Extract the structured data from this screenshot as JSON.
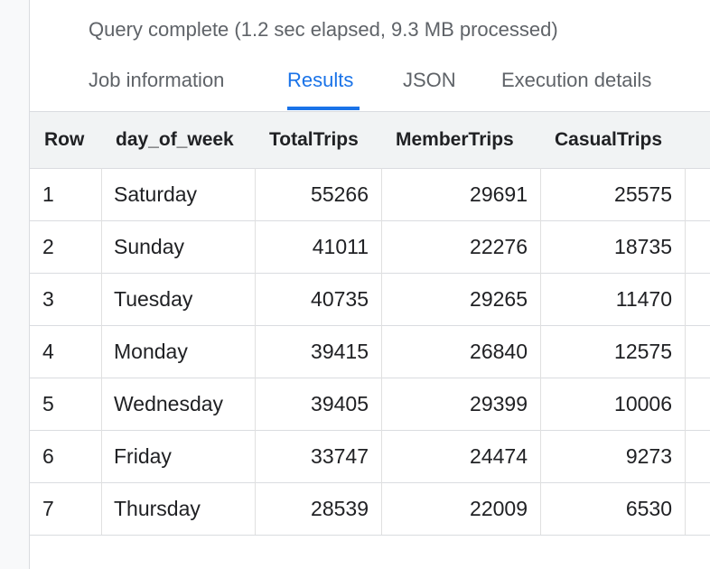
{
  "header": {
    "status": "Query complete (1.2 sec elapsed, 9.3 MB processed)"
  },
  "tabs": [
    "Job information",
    "Results",
    "JSON",
    "Execution details"
  ],
  "active_tab": 1,
  "table": {
    "columns": [
      "Row",
      "day_of_week",
      "TotalTrips",
      "MemberTrips",
      "CasualTrips"
    ],
    "rows": [
      [
        1,
        "Saturday",
        55266,
        29691,
        25575
      ],
      [
        2,
        "Sunday",
        41011,
        22276,
        18735
      ],
      [
        3,
        "Tuesday",
        40735,
        29265,
        11470
      ],
      [
        4,
        "Monday",
        39415,
        26840,
        12575
      ],
      [
        5,
        "Wednesday",
        39405,
        29399,
        10006
      ],
      [
        6,
        "Friday",
        33747,
        24474,
        9273
      ],
      [
        7,
        "Thursday",
        28539,
        22009,
        6530
      ]
    ]
  }
}
